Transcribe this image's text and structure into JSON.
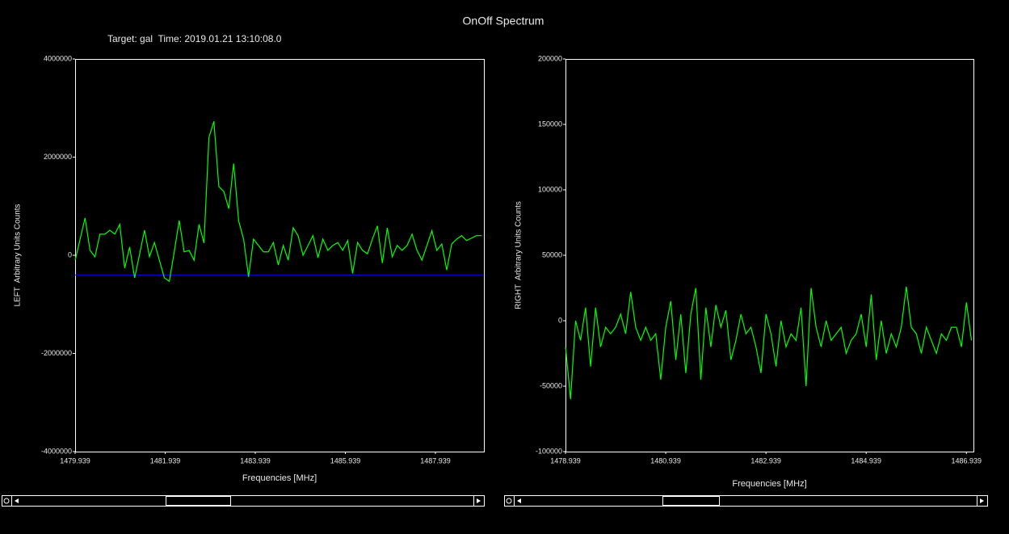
{
  "title": "OnOff Spectrum",
  "subtitle": "Target: gal  Time: 2019.01.21 13:10:08.0",
  "chart_data": [
    {
      "type": "line",
      "y_label": "LEFT  Arbitrary Units Counts",
      "x_label": "Frequencies [MHz]",
      "xlim": [
        1479.939,
        1489.015
      ],
      "ylim": [
        -4000000,
        4000000
      ],
      "xticks": [
        1479.939,
        1481.939,
        1483.939,
        1485.939,
        1487.939
      ],
      "yticks": [
        -4000000,
        -2000000,
        0,
        2000000,
        4000000
      ],
      "reference_line": -400000,
      "reference_color": "#0000ff",
      "x": [
        1479.94,
        1480.05,
        1480.16,
        1480.27,
        1480.38,
        1480.49,
        1480.6,
        1480.71,
        1480.82,
        1480.93,
        1481.04,
        1481.15,
        1481.26,
        1481.37,
        1481.48,
        1481.59,
        1481.7,
        1481.81,
        1481.92,
        1482.03,
        1482.14,
        1482.25,
        1482.36,
        1482.47,
        1482.58,
        1482.69,
        1482.8,
        1482.91,
        1483.02,
        1483.13,
        1483.24,
        1483.35,
        1483.46,
        1483.57,
        1483.68,
        1483.79,
        1483.9,
        1484.01,
        1484.12,
        1484.23,
        1484.34,
        1484.45,
        1484.56,
        1484.67,
        1484.78,
        1484.89,
        1485,
        1485.11,
        1485.22,
        1485.33,
        1485.44,
        1485.55,
        1485.66,
        1485.77,
        1485.88,
        1485.99,
        1486.1,
        1486.21,
        1486.32,
        1486.43,
        1486.54,
        1486.65,
        1486.76,
        1486.87,
        1486.98,
        1487.09,
        1487.2,
        1487.31,
        1487.42,
        1487.53,
        1487.64,
        1487.75,
        1487.86,
        1487.97,
        1488.08,
        1488.19,
        1488.3,
        1488.41,
        1488.52,
        1488.63,
        1488.74,
        1488.85,
        1488.96
      ],
      "series": [
        {
          "color": "#00ff00",
          "values": [
            -100000,
            330000,
            760000,
            100000,
            -30000,
            430000,
            430000,
            510000,
            430000,
            630000,
            -260000,
            170000,
            -460000,
            20000,
            510000,
            -30000,
            260000,
            -100000,
            -460000,
            -530000,
            70000,
            710000,
            70000,
            100000,
            -100000,
            630000,
            250000,
            2400000,
            2730000,
            1400000,
            1300000,
            950000,
            1870000,
            700000,
            330000,
            -440000,
            330000,
            200000,
            70000,
            70000,
            260000,
            -200000,
            200000,
            -100000,
            560000,
            400000,
            0,
            200000,
            400000,
            -50000,
            330000,
            100000,
            200000,
            260000,
            100000,
            300000,
            -370000,
            260000,
            100000,
            30000,
            330000,
            600000,
            -160000,
            560000,
            -30000,
            200000,
            100000,
            200000,
            430000,
            100000,
            -100000,
            200000,
            500000,
            100000,
            230000,
            -300000,
            230000,
            330000,
            400000,
            300000,
            350000,
            400000,
            400000
          ]
        }
      ]
    },
    {
      "type": "line",
      "y_label": "RIGHT  Arbitrary Units Counts",
      "x_label": "Frequencies [MHz]",
      "xlim": [
        1478.939,
        1487.08
      ],
      "ylim": [
        -100000,
        200000
      ],
      "xticks": [
        1478.939,
        1480.939,
        1482.939,
        1484.939,
        1486.939
      ],
      "yticks": [
        -100000,
        -50000,
        0,
        50000,
        100000,
        150000,
        200000
      ],
      "x": [
        1478.94,
        1479.04,
        1479.14,
        1479.24,
        1479.34,
        1479.44,
        1479.54,
        1479.64,
        1479.74,
        1479.84,
        1479.94,
        1480.04,
        1480.14,
        1480.24,
        1480.34,
        1480.44,
        1480.54,
        1480.64,
        1480.74,
        1480.84,
        1480.94,
        1481.04,
        1481.14,
        1481.24,
        1481.34,
        1481.44,
        1481.54,
        1481.64,
        1481.74,
        1481.84,
        1481.94,
        1482.04,
        1482.14,
        1482.24,
        1482.34,
        1482.44,
        1482.54,
        1482.64,
        1482.74,
        1482.84,
        1482.94,
        1483.04,
        1483.14,
        1483.24,
        1483.34,
        1483.44,
        1483.54,
        1483.64,
        1483.74,
        1483.84,
        1483.94,
        1484.04,
        1484.14,
        1484.24,
        1484.34,
        1484.44,
        1484.54,
        1484.64,
        1484.74,
        1484.84,
        1484.94,
        1485.04,
        1485.14,
        1485.24,
        1485.34,
        1485.44,
        1485.54,
        1485.64,
        1485.74,
        1485.84,
        1485.94,
        1486.04,
        1486.14,
        1486.24,
        1486.34,
        1486.44,
        1486.54,
        1486.64,
        1486.74,
        1486.84,
        1486.94,
        1487.04
      ],
      "series": [
        {
          "color": "#00ff00",
          "values": [
            -20000,
            -60000,
            0,
            -15000,
            10000,
            -35000,
            10000,
            -20000,
            -5000,
            -10000,
            -5000,
            5000,
            -10000,
            22000,
            -5000,
            -15000,
            -5000,
            -15000,
            -10000,
            -45000,
            -5000,
            15000,
            -30000,
            5000,
            -40000,
            5000,
            25000,
            -45000,
            10000,
            -20000,
            12000,
            -5000,
            8000,
            -30000,
            -15000,
            5000,
            -10000,
            -5000,
            -20000,
            -40000,
            5000,
            -10000,
            -35000,
            0,
            -20000,
            -10000,
            -15000,
            10000,
            -50000,
            25000,
            -5000,
            -20000,
            0,
            -15000,
            -10000,
            -5000,
            -25000,
            -15000,
            -10000,
            5000,
            -20000,
            20000,
            -30000,
            0,
            -25000,
            -10000,
            -20000,
            -5000,
            26000,
            -5000,
            -10000,
            -25000,
            -5000,
            -15000,
            -25000,
            -10000,
            -15000,
            -5000,
            -5000,
            -20000,
            14000,
            -15000
          ]
        }
      ]
    }
  ]
}
